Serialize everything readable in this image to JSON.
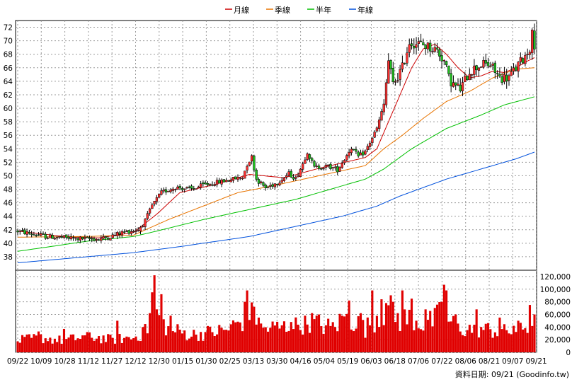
{
  "legend": [
    {
      "label": "月線",
      "color": "#cc0000"
    },
    {
      "label": "季線",
      "color": "#e87400"
    },
    {
      "label": "半年",
      "color": "#00c000"
    },
    {
      "label": "年線",
      "color": "#0050dc"
    }
  ],
  "footer": "資料日期: 09/21 (Goodinfo.tw)",
  "chart_data": [
    {
      "type": "candlestick",
      "title": "",
      "ylim": [
        36,
        73
      ],
      "yticks": [
        38,
        40,
        42,
        44,
        46,
        48,
        50,
        52,
        54,
        56,
        58,
        60,
        62,
        64,
        66,
        68,
        70,
        72
      ],
      "grid": true,
      "legend_position": "top-center",
      "x_tick_labels": [
        "09/22",
        "10/09",
        "10/28",
        "11/12",
        "11/27",
        "12/12",
        "12/30",
        "01/15",
        "01/30",
        "02/25",
        "03/13",
        "03/30",
        "04/16",
        "05/04",
        "05/19",
        "06/03",
        "06/18",
        "07/06",
        "07/22",
        "08/06",
        "08/21",
        "09/07",
        "09/21"
      ],
      "price_path": [
        [
          0,
          41.8
        ],
        [
          12,
          41.0
        ],
        [
          25,
          40.7
        ],
        [
          35,
          40.6
        ],
        [
          40,
          41.0
        ],
        [
          45,
          41.6
        ],
        [
          52,
          42.0
        ],
        [
          55,
          43.3
        ],
        [
          58,
          45.6
        ],
        [
          62,
          47.5
        ],
        [
          68,
          48.3
        ],
        [
          75,
          48.0
        ],
        [
          80,
          48.6
        ],
        [
          90,
          49.3
        ],
        [
          97,
          49.8
        ],
        [
          99,
          51.7
        ],
        [
          101,
          52.8
        ],
        [
          103,
          49.5
        ],
        [
          107,
          48.2
        ],
        [
          112,
          49.0
        ],
        [
          117,
          50.3
        ],
        [
          120,
          49.6
        ],
        [
          123,
          51.8
        ],
        [
          125,
          53.6
        ],
        [
          128,
          51.2
        ],
        [
          134,
          51.4
        ],
        [
          138,
          50.9
        ],
        [
          141,
          52.5
        ],
        [
          144,
          54.2
        ],
        [
          147,
          52.8
        ],
        [
          150,
          53.6
        ],
        [
          155,
          57.0
        ],
        [
          158,
          60.5
        ],
        [
          160,
          67.0
        ],
        [
          162,
          63.5
        ],
        [
          166,
          66.0
        ],
        [
          169,
          69.8
        ],
        [
          175,
          69.4
        ],
        [
          181,
          68.6
        ],
        [
          184,
          67.0
        ],
        [
          186,
          64.5
        ],
        [
          188,
          63.5
        ],
        [
          191,
          62.8
        ],
        [
          195,
          65.5
        ],
        [
          200,
          66.5
        ],
        [
          204,
          66.4
        ],
        [
          208,
          64.5
        ],
        [
          212,
          64.6
        ],
        [
          216,
          66.4
        ],
        [
          219,
          67.8
        ],
        [
          221,
          69.0
        ],
        [
          222,
          71.0
        ],
        [
          223,
          69.5
        ]
      ],
      "moving_averages": [
        {
          "name": "月線",
          "points": [
            [
              0,
              41.8
            ],
            [
              20,
              41.0
            ],
            [
              35,
              40.8
            ],
            [
              50,
              41.6
            ],
            [
              60,
              44.3
            ],
            [
              70,
              47.5
            ],
            [
              85,
              48.7
            ],
            [
              100,
              50.2
            ],
            [
              115,
              49.7
            ],
            [
              130,
              51.1
            ],
            [
              145,
              52.3
            ],
            [
              150,
              52.7
            ],
            [
              155,
              54.0
            ],
            [
              160,
              58.0
            ],
            [
              165,
              62.0
            ],
            [
              170,
              66.0
            ],
            [
              175,
              68.8
            ],
            [
              180,
              69.5
            ],
            [
              185,
              68.0
            ],
            [
              190,
              66.0
            ],
            [
              195,
              64.5
            ],
            [
              200,
              64.8
            ],
            [
              205,
              65.5
            ],
            [
              210,
              65.3
            ],
            [
              215,
              66.0
            ],
            [
              220,
              67.0
            ],
            [
              223,
              67.5
            ]
          ]
        },
        {
          "name": "季線",
          "points": [
            [
              0,
              40.9
            ],
            [
              30,
              41.0
            ],
            [
              50,
              41.2
            ],
            [
              65,
              43.5
            ],
            [
              80,
              45.5
            ],
            [
              95,
              47.5
            ],
            [
              110,
              48.5
            ],
            [
              130,
              50.0
            ],
            [
              150,
              51.5
            ],
            [
              158,
              54.0
            ],
            [
              166,
              56.0
            ],
            [
              175,
              58.5
            ],
            [
              185,
              61.0
            ],
            [
              195,
              62.5
            ],
            [
              205,
              64.5
            ],
            [
              215,
              65.8
            ],
            [
              223,
              66.0
            ]
          ]
        },
        {
          "name": "半年",
          "points": [
            [
              0,
              38.8
            ],
            [
              30,
              40.3
            ],
            [
              50,
              41.0
            ],
            [
              60,
              41.8
            ],
            [
              80,
              43.5
            ],
            [
              100,
              45.0
            ],
            [
              120,
              46.5
            ],
            [
              140,
              48.5
            ],
            [
              150,
              49.5
            ],
            [
              158,
              51.0
            ],
            [
              170,
              54.0
            ],
            [
              185,
              57.0
            ],
            [
              200,
              59.0
            ],
            [
              210,
              60.5
            ],
            [
              223,
              61.7
            ]
          ]
        },
        {
          "name": "年線",
          "points": [
            [
              0,
              37.1
            ],
            [
              50,
              38.6
            ],
            [
              70,
              39.5
            ],
            [
              100,
              41.0
            ],
            [
              120,
              42.5
            ],
            [
              140,
              44.0
            ],
            [
              155,
              45.5
            ],
            [
              165,
              47.0
            ],
            [
              185,
              49.5
            ],
            [
              200,
              51.0
            ],
            [
              215,
              52.5
            ],
            [
              223,
              53.5
            ]
          ]
        }
      ]
    },
    {
      "type": "bar",
      "title": "",
      "ylim": [
        0,
        130000
      ],
      "yticks": [
        0,
        20000,
        40000,
        60000,
        80000,
        100000,
        120000
      ],
      "ytick_labels": [
        "0",
        "20,000",
        "40,000",
        "60,000",
        "80,000",
        "100,000",
        "120,000"
      ],
      "grid": true,
      "color": "#e00000",
      "volume_envelope": [
        [
          0,
          20000
        ],
        [
          10,
          25000
        ],
        [
          20,
          20000
        ],
        [
          30,
          28000
        ],
        [
          40,
          22000
        ],
        [
          50,
          25000
        ],
        [
          55,
          35000
        ],
        [
          58,
          60000
        ],
        [
          60,
          75000
        ],
        [
          62,
          55000
        ],
        [
          65,
          40000
        ],
        [
          75,
          30000
        ],
        [
          90,
          38000
        ],
        [
          99,
          60000
        ],
        [
          101,
          85000
        ],
        [
          105,
          40000
        ],
        [
          120,
          45000
        ],
        [
          125,
          55000
        ],
        [
          135,
          42000
        ],
        [
          143,
          60000
        ],
        [
          150,
          40000
        ],
        [
          157,
          70000
        ],
        [
          160,
          75000
        ],
        [
          165,
          55000
        ],
        [
          170,
          60000
        ],
        [
          175,
          48000
        ],
        [
          180,
          55000
        ],
        [
          183,
          70000
        ],
        [
          186,
          55000
        ],
        [
          190,
          40000
        ],
        [
          200,
          40000
        ],
        [
          210,
          35000
        ],
        [
          215,
          38000
        ],
        [
          220,
          45000
        ],
        [
          222,
          62000
        ],
        [
          223,
          50000
        ]
      ],
      "volume_spikes": [
        [
          9,
          33000
        ],
        [
          20,
          37000
        ],
        [
          30,
          32000
        ],
        [
          43,
          50000
        ],
        [
          54,
          40000
        ],
        [
          57,
          62000
        ],
        [
          58,
          95000
        ],
        [
          59,
          122000
        ],
        [
          60,
          68000
        ],
        [
          62,
          92000
        ],
        [
          66,
          58000
        ],
        [
          98,
          80000
        ],
        [
          99,
          98000
        ],
        [
          101,
          79000
        ],
        [
          104,
          55000
        ],
        [
          118,
          48000
        ],
        [
          124,
          58000
        ],
        [
          140,
          58000
        ],
        [
          143,
          82000
        ],
        [
          148,
          62000
        ],
        [
          153,
          98000
        ],
        [
          157,
          84000
        ],
        [
          159,
          78000
        ],
        [
          162,
          80000
        ],
        [
          166,
          98000
        ],
        [
          170,
          85000
        ],
        [
          176,
          68000
        ],
        [
          183,
          80000
        ],
        [
          184,
          107000
        ],
        [
          185,
          98000
        ],
        [
          189,
          60000
        ],
        [
          198,
          68000
        ],
        [
          208,
          55000
        ],
        [
          214,
          42000
        ],
        [
          221,
          75000
        ]
      ]
    }
  ]
}
